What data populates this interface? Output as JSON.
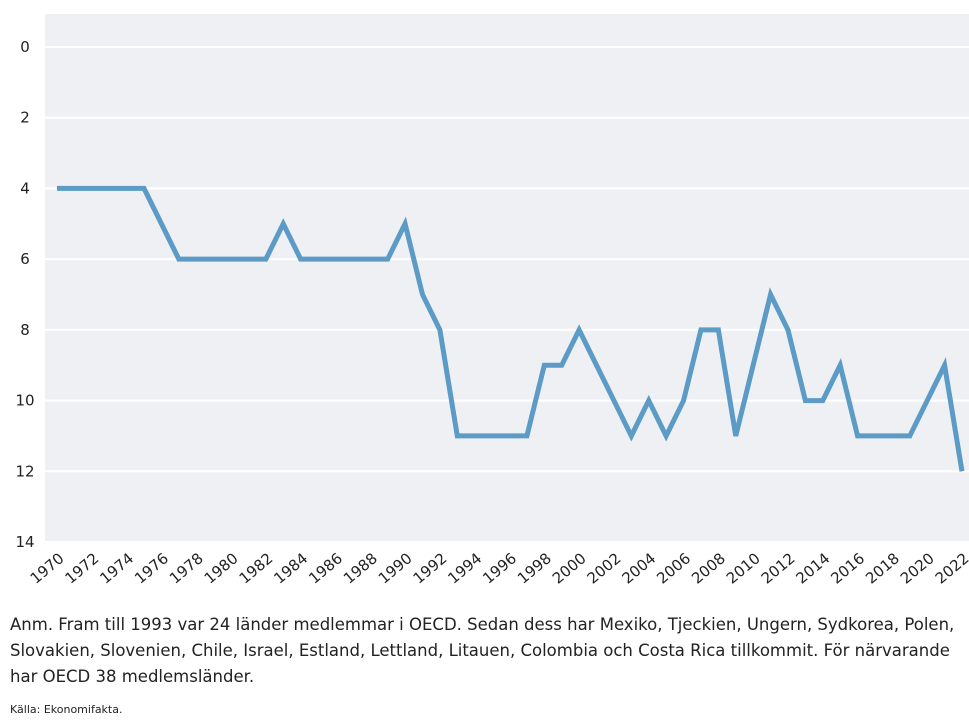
{
  "chart_data": {
    "type": "line",
    "x": [
      1970,
      1971,
      1972,
      1973,
      1974,
      1975,
      1976,
      1977,
      1978,
      1979,
      1980,
      1981,
      1982,
      1983,
      1984,
      1985,
      1986,
      1987,
      1988,
      1989,
      1990,
      1991,
      1992,
      1993,
      1994,
      1995,
      1996,
      1997,
      1998,
      1999,
      2000,
      2001,
      2002,
      2003,
      2004,
      2005,
      2006,
      2007,
      2008,
      2009,
      2010,
      2011,
      2012,
      2013,
      2014,
      2015,
      2016,
      2017,
      2018,
      2019,
      2020,
      2021,
      2022
    ],
    "series": [
      {
        "color": "#5b9bc5",
        "values": [
          4,
          4,
          4,
          4,
          4,
          4,
          5,
          6,
          6,
          6,
          6,
          6,
          6,
          5,
          6,
          6,
          6,
          6,
          6,
          6,
          5,
          7,
          8,
          11,
          11,
          11,
          11,
          11,
          9,
          9,
          8,
          9,
          10,
          11,
          10,
          11,
          10,
          8,
          8,
          11,
          9,
          7,
          8,
          10,
          10,
          9,
          11,
          11,
          11,
          11,
          10,
          9,
          12
        ]
      }
    ],
    "xlim": [
      1970,
      2022
    ],
    "xticks": [
      1970,
      1972,
      1974,
      1976,
      1978,
      1980,
      1982,
      1984,
      1986,
      1988,
      1990,
      1992,
      1994,
      1996,
      1998,
      2000,
      2002,
      2004,
      2006,
      2008,
      2010,
      2012,
      2014,
      2016,
      2018,
      2020,
      2022
    ],
    "ylim": [
      0,
      14
    ],
    "yticks": [
      0,
      2,
      4,
      6,
      8,
      10,
      12,
      14
    ],
    "y_inverted": true,
    "grid": true,
    "note": "Anm. Fram till 1993 var 24 länder medlemmar i OECD. Sedan dess har Mexiko, Tjeckien, Ungern, Sydkorea, Polen, Slovakien, Slovenien, Chile, Israel, Estland, Lettland, Litauen, Colombia och Costa Rica tillkommit. För närvarande har OECD 38 medlemsländer.",
    "source": "Källa: Ekonomifakta."
  }
}
